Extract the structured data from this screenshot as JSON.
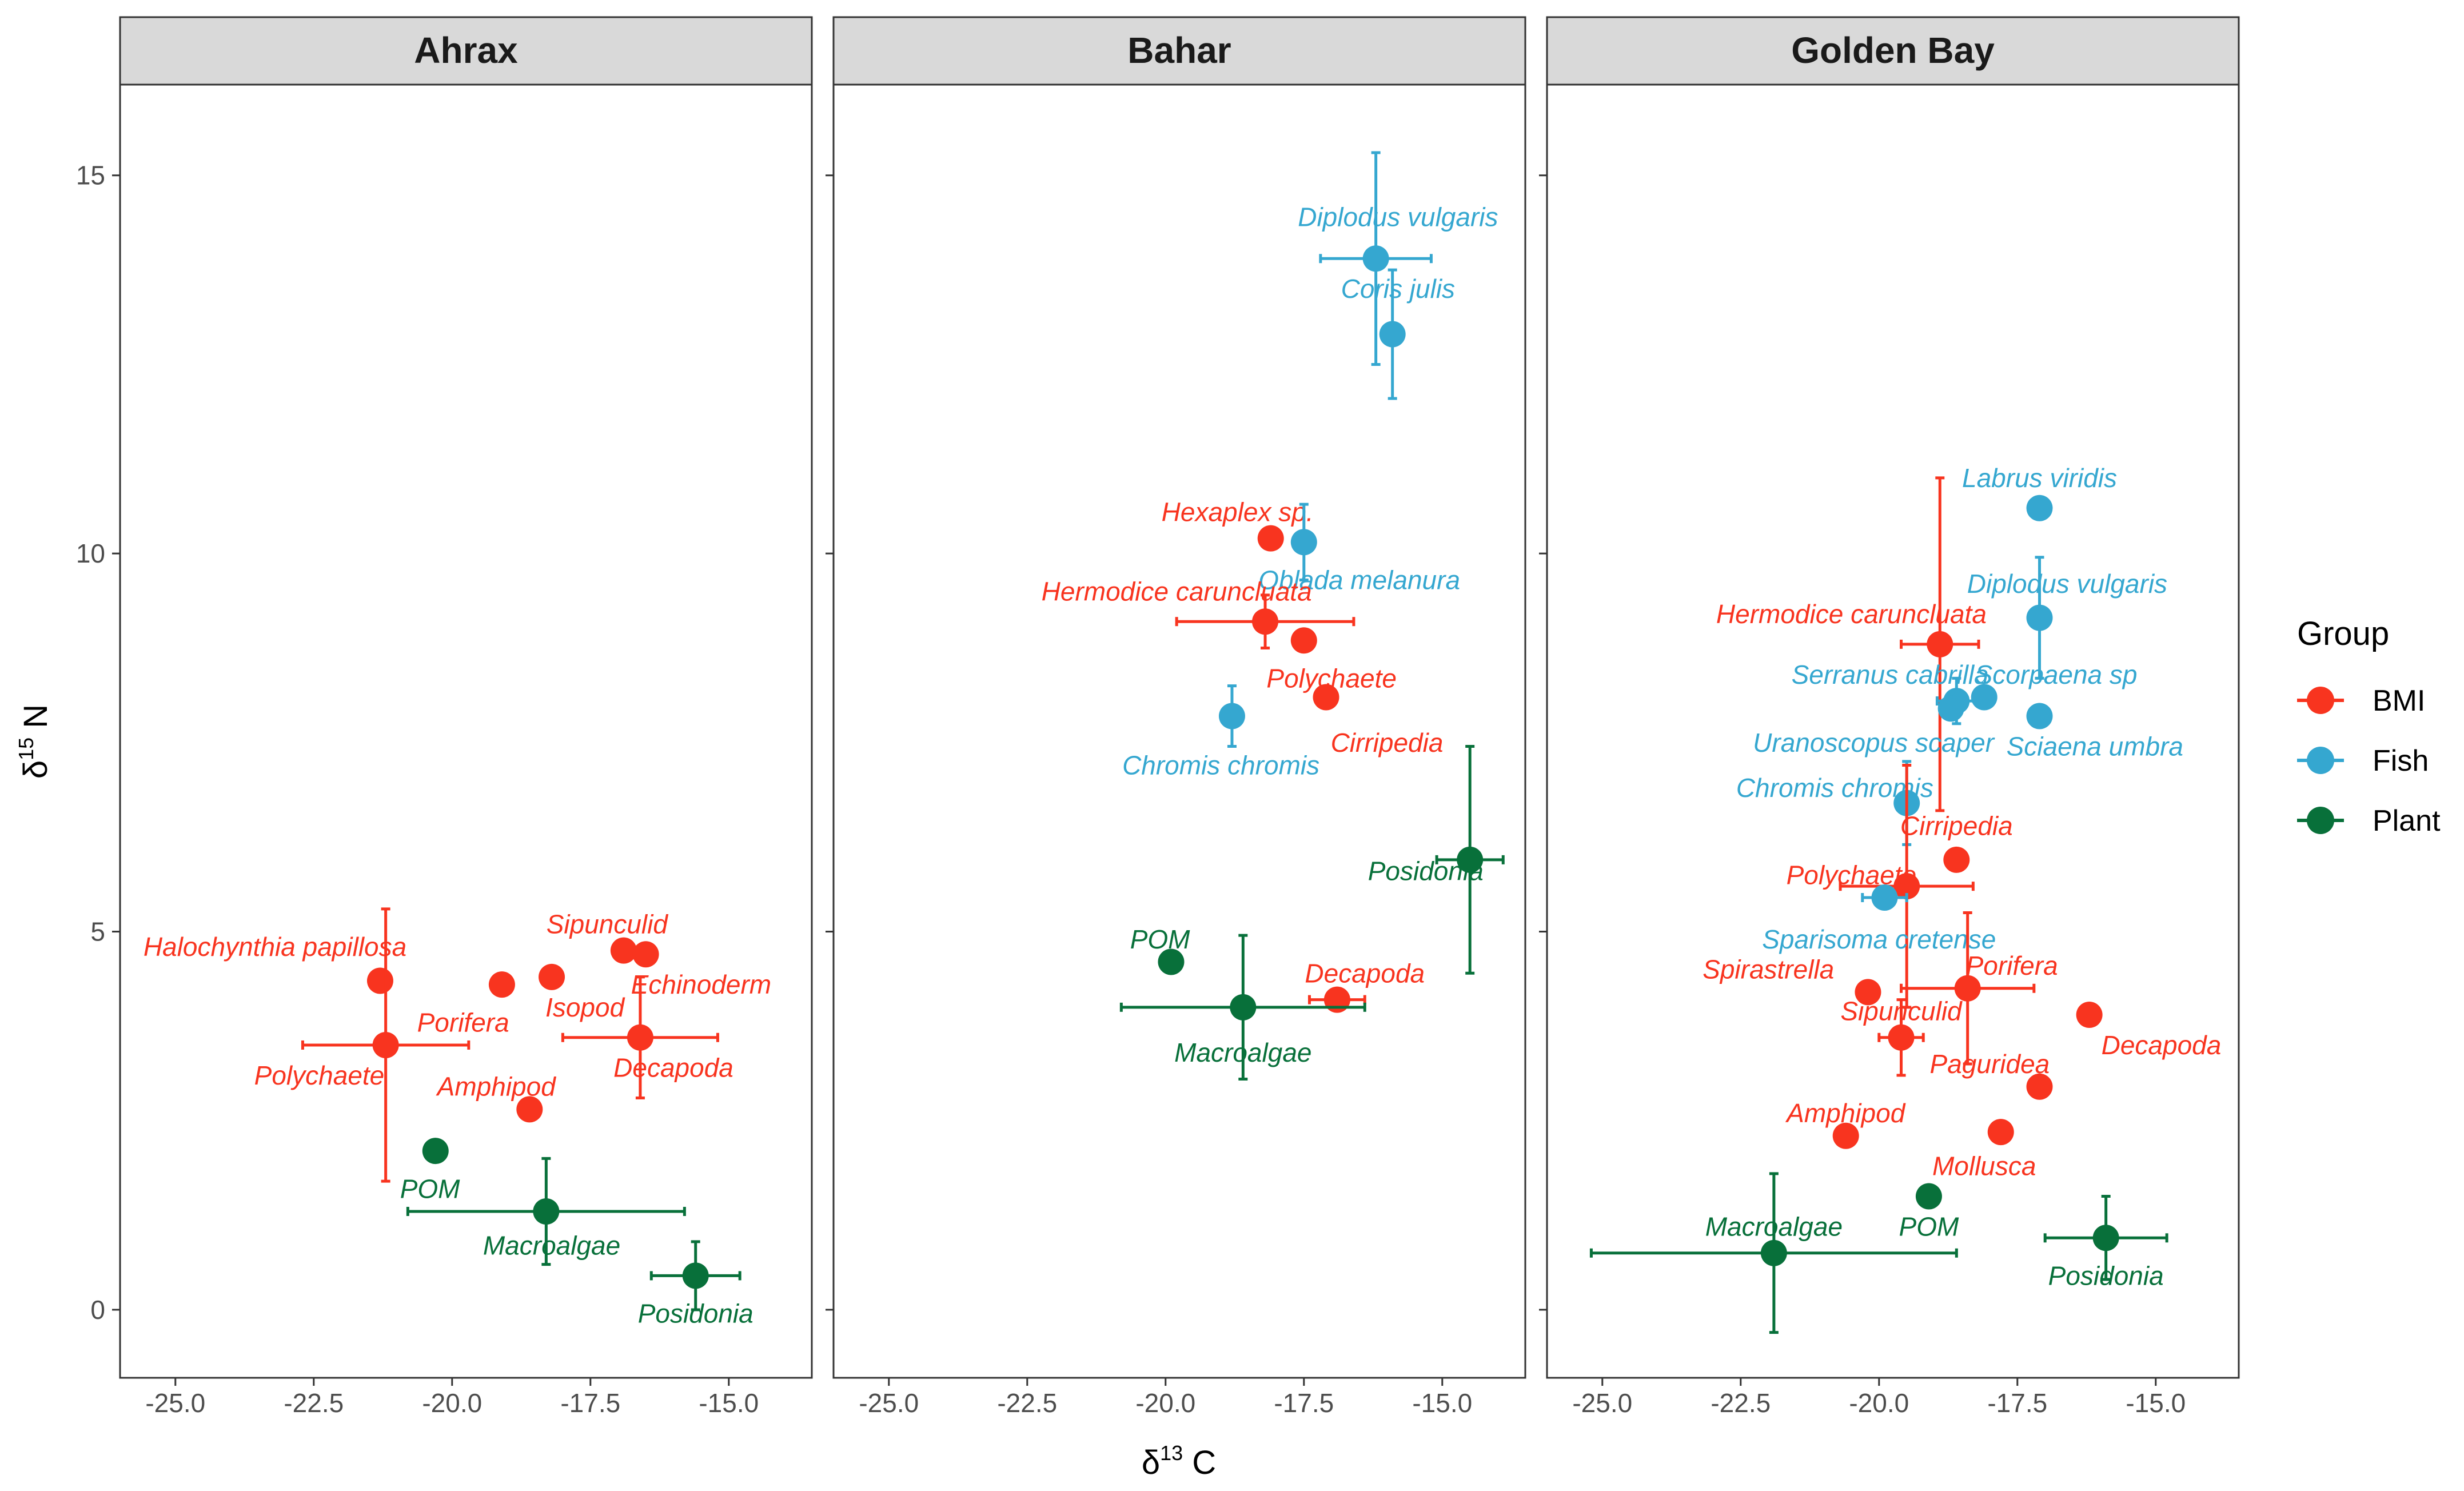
{
  "chart_data": {
    "type": "scatter",
    "xlabel": "δ13 C",
    "ylabel": "δ15 N",
    "xlabel_parts": {
      "delta": "δ",
      "sup": "13",
      "unit": " C"
    },
    "ylabel_parts": {
      "delta": "δ",
      "sup": "15",
      "unit": " N"
    },
    "xlim": [
      -26.0,
      -13.5
    ],
    "ylim": [
      -0.9,
      16.2
    ],
    "x_ticks": [
      -25.0,
      -22.5,
      -20.0,
      -17.5,
      -15.0
    ],
    "x_tick_labels": [
      "-25.0",
      "-22.5",
      "-20.0",
      "-17.5",
      "-15.0"
    ],
    "y_ticks": [
      0,
      5,
      10,
      15
    ],
    "y_tick_labels": [
      "0",
      "5",
      "10",
      "15"
    ],
    "legend": {
      "title": "Group",
      "position": "right",
      "entries": [
        {
          "name": "BMI",
          "color": "#f8341f"
        },
        {
          "name": "Fish",
          "color": "#35a7d0"
        },
        {
          "name": "Plant",
          "color": "#08703a"
        }
      ]
    },
    "colors": {
      "BMI": "#f8341f",
      "Fish": "#35a7d0",
      "Plant": "#08703a"
    },
    "panels": [
      {
        "title": "Ahrax",
        "points": [
          {
            "label": "Halochynthia papillosa",
            "group": "BMI",
            "x": -21.3,
            "y": 4.35,
            "lx": -23.2,
            "ly": 4.8
          },
          {
            "label": "Porifera",
            "group": "BMI",
            "x": -19.1,
            "y": 4.3,
            "lx": -19.8,
            "ly": 3.8
          },
          {
            "label": "Sipunculid",
            "group": "BMI",
            "x": -16.9,
            "y": 4.75,
            "lx": -17.2,
            "ly": 5.1
          },
          {
            "label": "Isopod",
            "group": "BMI",
            "x": -18.2,
            "y": 4.4,
            "lx": -17.6,
            "ly": 4.0
          },
          {
            "label": "Echinoderm",
            "group": "BMI",
            "x": -16.5,
            "y": 4.7,
            "lx": -15.5,
            "ly": 4.3
          },
          {
            "label": "Polychaete",
            "group": "BMI",
            "x": -21.2,
            "y": 3.5,
            "xerr": 1.5,
            "yerr": 1.8,
            "lx": -22.4,
            "ly": 3.1
          },
          {
            "label": "Decapoda",
            "group": "BMI",
            "x": -16.6,
            "y": 3.6,
            "xerr": 1.4,
            "yerr": 0.8,
            "lx": -16.0,
            "ly": 3.2
          },
          {
            "label": "Amphipod",
            "group": "BMI",
            "x": -18.6,
            "y": 2.65,
            "lx": -19.2,
            "ly": 2.95
          },
          {
            "label": "POM",
            "group": "Plant",
            "x": -20.3,
            "y": 2.1,
            "lx": -20.4,
            "ly": 1.6
          },
          {
            "label": "Macroalgae",
            "group": "Plant",
            "x": -18.3,
            "y": 1.3,
            "xerr": 2.5,
            "yerr": 0.7,
            "lx": -18.2,
            "ly": 0.85
          },
          {
            "label": "Posidonia",
            "group": "Plant",
            "x": -15.6,
            "y": 0.45,
            "xerr": 0.8,
            "yerr": 0.45,
            "lx": -15.6,
            "ly": -0.05
          }
        ]
      },
      {
        "title": "Bahar",
        "points": [
          {
            "label": "Diplodus vulgaris",
            "group": "Fish",
            "x": -16.2,
            "y": 13.9,
            "xerr": 1.0,
            "yerr": 1.4,
            "lx": -15.8,
            "ly": 14.45
          },
          {
            "label": "Coris julis",
            "group": "Fish",
            "x": -15.9,
            "y": 12.9,
            "yerr": 0.85,
            "lx": -15.8,
            "ly": 13.5
          },
          {
            "label": "Hexaplex sp.",
            "group": "BMI",
            "x": -18.1,
            "y": 10.2,
            "lx": -18.7,
            "ly": 10.55
          },
          {
            "label": "Oblada melanura",
            "group": "Fish",
            "x": -17.5,
            "y": 10.15,
            "yerr": 0.5,
            "lx": -16.5,
            "ly": 9.65
          },
          {
            "label": "Hermodice caruncluata",
            "group": "BMI",
            "x": -18.2,
            "y": 9.1,
            "xerr": 1.6,
            "yerr": 0.35,
            "lx": -19.8,
            "ly": 9.5
          },
          {
            "label": "Polychaete",
            "group": "BMI",
            "x": -17.5,
            "y": 8.85,
            "lx": -17.0,
            "ly": 8.35
          },
          {
            "label": "Cirripedia",
            "group": "BMI",
            "x": -17.1,
            "y": 8.1,
            "lx": -16.0,
            "ly": 7.5
          },
          {
            "label": "Chromis chromis",
            "group": "Fish",
            "x": -18.8,
            "y": 7.85,
            "yerr": 0.4,
            "lx": -19.0,
            "ly": 7.2
          },
          {
            "label": "Posidonia",
            "group": "Plant",
            "x": -14.5,
            "y": 5.95,
            "xerr": 0.6,
            "yerr": 1.5,
            "lx": -15.3,
            "ly": 5.8
          },
          {
            "label": "POM",
            "group": "Plant",
            "x": -19.9,
            "y": 4.6,
            "lx": -20.1,
            "ly": 4.9
          },
          {
            "label": "Decapoda",
            "group": "BMI",
            "x": -16.9,
            "y": 4.1,
            "xerr": 0.5,
            "lx": -16.4,
            "ly": 4.45
          },
          {
            "label": "Macroalgae",
            "group": "Plant",
            "x": -18.6,
            "y": 4.0,
            "xerr": 2.2,
            "yerr": 0.95,
            "lx": -18.6,
            "ly": 3.4
          }
        ]
      },
      {
        "title": "Golden Bay",
        "points": [
          {
            "label": "Labrus viridis",
            "group": "Fish",
            "x": -17.1,
            "y": 10.6,
            "lx": -17.1,
            "ly": 11.0
          },
          {
            "label": "Diplodus vulgaris",
            "group": "Fish",
            "x": -17.1,
            "y": 9.15,
            "yerr": 0.8,
            "lx": -16.6,
            "ly": 9.6
          },
          {
            "label": "Hermodice caruncluata",
            "group": "BMI",
            "x": -18.9,
            "y": 8.8,
            "xerr": 0.7,
            "yerr": 2.2,
            "lx": -20.5,
            "ly": 9.2
          },
          {
            "label": "Serranus cabrilla",
            "group": "Fish",
            "x": -18.6,
            "y": 8.05,
            "xerr": 0.35,
            "yerr": 0.3,
            "lx": -19.8,
            "ly": 8.4
          },
          {
            "label": "Scorpaena sp",
            "group": "Fish",
            "x": -18.1,
            "y": 8.1,
            "lx": -16.8,
            "ly": 8.4
          },
          {
            "label": "Sciaena umbra",
            "group": "Fish",
            "x": -17.1,
            "y": 7.85,
            "lx": -16.1,
            "ly": 7.45
          },
          {
            "label": "Uranoscopus scaper",
            "group": "Fish",
            "x": -18.7,
            "y": 7.95,
            "lx": -20.1,
            "ly": 7.5
          },
          {
            "label": "Chromis chromis",
            "group": "Fish",
            "x": -19.5,
            "y": 6.7,
            "yerr": 0.55,
            "lx": -20.8,
            "ly": 6.9
          },
          {
            "label": "Cirripedia",
            "group": "BMI",
            "x": -18.6,
            "y": 5.95,
            "lx": -18.6,
            "ly": 6.4
          },
          {
            "label": "Polychaete",
            "group": "BMI",
            "x": -19.5,
            "y": 5.6,
            "xerr": 1.2,
            "yerr": 1.6,
            "lx": -20.5,
            "ly": 5.75
          },
          {
            "label": "Sparisoma cretense",
            "group": "Fish",
            "x": -19.9,
            "y": 5.45,
            "xerr": 0.4,
            "lx": -20.0,
            "ly": 4.9
          },
          {
            "label": "Spirastrella",
            "group": "BMI",
            "x": -20.2,
            "y": 4.2,
            "lx": -22.0,
            "ly": 4.5
          },
          {
            "label": "Porifera",
            "group": "BMI",
            "x": -18.4,
            "y": 4.25,
            "xerr": 1.2,
            "yerr": 1.0,
            "lx": -17.6,
            "ly": 4.55
          },
          {
            "label": "Sipunculid",
            "group": "BMI",
            "x": -19.6,
            "y": 3.6,
            "xerr": 0.4,
            "yerr": 0.5,
            "lx": -19.6,
            "ly": 3.95
          },
          {
            "label": "Decapoda",
            "group": "BMI",
            "x": -16.2,
            "y": 3.9,
            "lx": -14.9,
            "ly": 3.5
          },
          {
            "label": "Paguridea",
            "group": "BMI",
            "x": -17.1,
            "y": 2.95,
            "lx": -18.0,
            "ly": 3.25
          },
          {
            "label": "Amphipod",
            "group": "BMI",
            "x": -20.6,
            "y": 2.3,
            "lx": -20.6,
            "ly": 2.6
          },
          {
            "label": "Mollusca",
            "group": "BMI",
            "x": -17.8,
            "y": 2.35,
            "lx": -18.1,
            "ly": 1.9
          },
          {
            "label": "POM",
            "group": "Plant",
            "x": -19.1,
            "y": 1.5,
            "lx": -19.1,
            "ly": 1.1
          },
          {
            "label": "Macroalgae",
            "group": "Plant",
            "x": -21.9,
            "y": 0.75,
            "xerr": 3.3,
            "yerr": 1.05,
            "lx": -21.9,
            "ly": 1.1
          },
          {
            "label": "Posidonia",
            "group": "Plant",
            "x": -15.9,
            "y": 0.95,
            "xerr": 1.1,
            "yerr": 0.55,
            "lx": -15.9,
            "ly": 0.45
          }
        ]
      }
    ]
  }
}
